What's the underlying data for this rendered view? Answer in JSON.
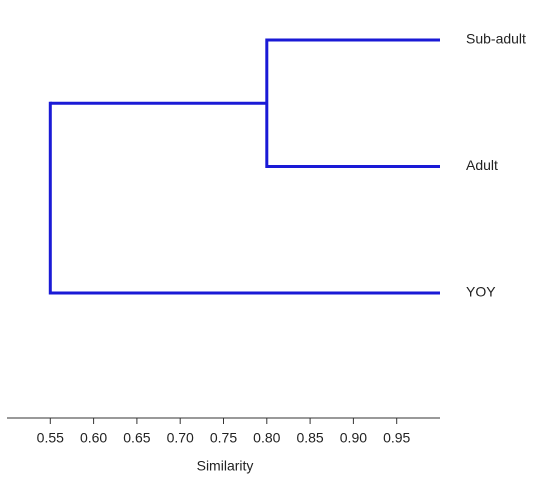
{
  "chart_data": {
    "type": "dendrogram",
    "x_label": "Similarity",
    "color": "#1a1ad6",
    "xlim": [
      0.5,
      1.0
    ],
    "xticks": [
      0.55,
      {
        "value": 0.6,
        "label": "0.60"
      },
      0.65,
      {
        "value": 0.7,
        "label": "0.70"
      },
      0.75,
      {
        "value": 0.8,
        "label": "0.80"
      },
      0.85,
      {
        "value": 0.9,
        "label": "0.90"
      },
      0.95
    ],
    "tree": {
      "similarity": 0.55,
      "children": [
        {
          "similarity": 0.8,
          "children": [
            {
              "name": "Sub-adult"
            },
            {
              "name": "Adult"
            }
          ]
        },
        {
          "name": "YOY"
        }
      ]
    }
  }
}
